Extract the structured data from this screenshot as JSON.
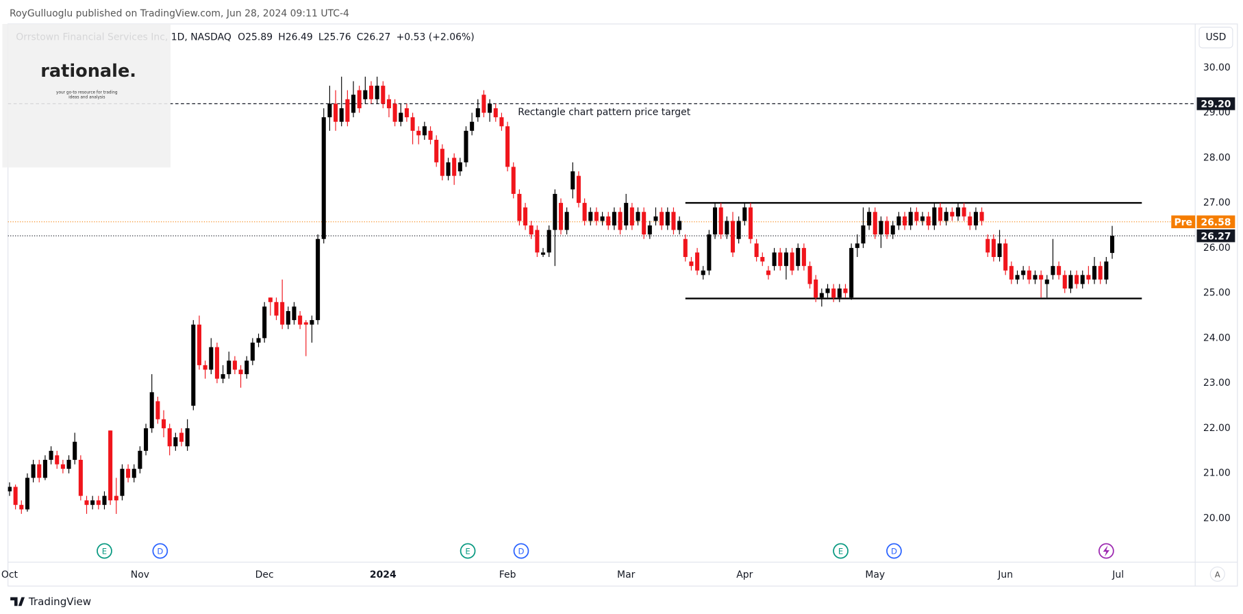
{
  "header": {
    "text": "RoyGulluoglu published on TradingView.com, Jun 28, 2024 09:11 UTC-4"
  },
  "logo": {
    "name": "rationale.",
    "tagline": [
      "your go-to resource for trading",
      "ideas and analysis"
    ]
  },
  "footer": {
    "brand": "TradingView"
  },
  "currency": "USD",
  "auto_button": "A",
  "chart_data": {
    "type": "candlestick",
    "title": "Orrstown Financial Services Inc, 1D, NASDAQ",
    "ohlc_labels": [
      "O",
      "H",
      "L",
      "C"
    ],
    "change": "+0.53 (+2.06%)",
    "up_color": "#000000",
    "down_color": "#f0151c",
    "xlim": [
      -0.27,
      200
    ],
    "xticks": [
      {
        "value": 0,
        "label": "Oct"
      },
      {
        "value": 22,
        "label": "Nov"
      },
      {
        "value": 43,
        "label": "Dec"
      },
      {
        "value": 63,
        "label": "2024"
      },
      {
        "value": 84,
        "label": "Feb"
      },
      {
        "value": 104,
        "label": "Mar"
      },
      {
        "value": 124,
        "label": "Apr"
      },
      {
        "value": 146,
        "label": "May"
      },
      {
        "value": 168,
        "label": "Jun"
      },
      {
        "value": 187,
        "label": "Jul"
      }
    ],
    "ylim": [
      19.03,
      30.97
    ],
    "yticks": [
      {
        "value": 20,
        "label": "20.00"
      },
      {
        "value": 21,
        "label": "21.00"
      },
      {
        "value": 22,
        "label": "22.00"
      },
      {
        "value": 23,
        "label": "23.00"
      },
      {
        "value": 24,
        "label": "24.00"
      },
      {
        "value": 25,
        "label": "25.00"
      },
      {
        "value": 26,
        "label": "26.00"
      },
      {
        "value": 27,
        "label": "27.00"
      },
      {
        "value": 28,
        "label": "28.00"
      },
      {
        "value": 29,
        "label": "29.00"
      },
      {
        "value": 30,
        "label": "30.00"
      }
    ],
    "grid": false,
    "target": {
      "value": 29.2,
      "label": "29.20",
      "annotation": "Rectangle chart pattern price target"
    },
    "premarket": {
      "name": "Pre",
      "value": 26.58,
      "color": "#f57c00"
    },
    "last": 26.27,
    "rectangle": {
      "top": 27.0,
      "bottom": 24.88,
      "x": [
        114,
        191
      ]
    },
    "events": [
      {
        "label": "E",
        "x": 16,
        "color": "#089981"
      },
      {
        "label": "D",
        "x": 25.4,
        "color": "#2962ff"
      },
      {
        "label": "E",
        "x": 77.3,
        "color": "#089981"
      },
      {
        "label": "D",
        "x": 86.3,
        "color": "#2962ff"
      },
      {
        "label": "E",
        "x": 140.2,
        "color": "#089981"
      },
      {
        "label": "D",
        "x": 149.2,
        "color": "#2962ff"
      }
    ],
    "signal": {
      "x": 185,
      "color": "#9c27b0"
    },
    "ohlc": [
      [
        20.6,
        20.8,
        20.5,
        20.7
      ],
      [
        20.7,
        20.75,
        20.2,
        20.3
      ],
      [
        20.3,
        20.4,
        20.1,
        20.2
      ],
      [
        20.2,
        21.0,
        20.15,
        20.9
      ],
      [
        20.9,
        21.3,
        20.8,
        21.2
      ],
      [
        21.2,
        21.3,
        20.8,
        20.9
      ],
      [
        20.9,
        21.4,
        20.85,
        21.3
      ],
      [
        21.3,
        21.6,
        21.2,
        21.5
      ],
      [
        21.4,
        21.5,
        21.1,
        21.2
      ],
      [
        21.2,
        21.3,
        21.0,
        21.1
      ],
      [
        21.1,
        21.4,
        21.0,
        21.3
      ],
      [
        21.3,
        21.9,
        21.2,
        21.7
      ],
      [
        21.3,
        21.4,
        20.4,
        20.5
      ],
      [
        20.4,
        20.5,
        20.1,
        20.3
      ],
      [
        20.3,
        20.5,
        20.2,
        20.4
      ],
      [
        20.4,
        20.5,
        20.2,
        20.3
      ],
      [
        20.3,
        20.6,
        20.2,
        20.5
      ],
      [
        21.95,
        21.95,
        20.3,
        20.4
      ],
      [
        20.5,
        20.9,
        20.1,
        20.4
      ],
      [
        20.5,
        21.2,
        20.4,
        21.1
      ],
      [
        21.1,
        21.2,
        20.8,
        20.9
      ],
      [
        20.9,
        21.2,
        20.8,
        21.1
      ],
      [
        21.1,
        21.6,
        21.0,
        21.5
      ],
      [
        21.5,
        22.1,
        21.4,
        22.0
      ],
      [
        22.0,
        23.2,
        21.9,
        22.8
      ],
      [
        22.6,
        22.7,
        22.1,
        22.2
      ],
      [
        22.2,
        22.4,
        21.8,
        22.0
      ],
      [
        22.0,
        22.1,
        21.4,
        21.6
      ],
      [
        21.6,
        21.9,
        21.5,
        21.8
      ],
      [
        21.9,
        22.0,
        21.6,
        21.7
      ],
      [
        21.6,
        22.2,
        21.5,
        22.0
      ],
      [
        22.5,
        24.4,
        22.4,
        24.3
      ],
      [
        24.3,
        24.5,
        23.3,
        23.4
      ],
      [
        23.4,
        23.5,
        23.1,
        23.3
      ],
      [
        23.3,
        24.0,
        23.2,
        23.8
      ],
      [
        23.8,
        23.9,
        23.0,
        23.1
      ],
      [
        23.1,
        23.4,
        23.0,
        23.2
      ],
      [
        23.2,
        23.7,
        23.1,
        23.5
      ],
      [
        23.5,
        23.6,
        23.2,
        23.3
      ],
      [
        23.3,
        23.4,
        22.9,
        23.2
      ],
      [
        23.2,
        23.6,
        23.1,
        23.5
      ],
      [
        23.5,
        24.0,
        23.4,
        23.9
      ],
      [
        23.9,
        24.1,
        23.8,
        24.0
      ],
      [
        24.0,
        24.8,
        23.9,
        24.7
      ],
      [
        24.9,
        24.9,
        24.5,
        24.8
      ],
      [
        24.8,
        24.9,
        24.4,
        24.5
      ],
      [
        24.8,
        25.3,
        24.2,
        24.3
      ],
      [
        24.3,
        24.7,
        24.2,
        24.6
      ],
      [
        24.4,
        24.8,
        24.3,
        24.7
      ],
      [
        24.5,
        24.6,
        24.2,
        24.3
      ],
      [
        24.35,
        24.4,
        23.6,
        24.3
      ],
      [
        24.3,
        24.5,
        23.9,
        24.4
      ],
      [
        24.4,
        26.3,
        24.3,
        26.2
      ],
      [
        26.2,
        29.1,
        26.1,
        28.9
      ],
      [
        28.9,
        29.6,
        28.6,
        29.2
      ],
      [
        29.2,
        29.5,
        28.6,
        28.8
      ],
      [
        28.8,
        29.8,
        28.7,
        29.1
      ],
      [
        29.3,
        29.5,
        28.7,
        28.8
      ],
      [
        29.0,
        29.7,
        28.9,
        29.4
      ],
      [
        29.5,
        29.6,
        29.0,
        29.1
      ],
      [
        29.3,
        29.8,
        29.2,
        29.5
      ],
      [
        29.6,
        29.7,
        29.2,
        29.3
      ],
      [
        29.3,
        29.8,
        29.2,
        29.6
      ],
      [
        29.6,
        29.7,
        29.1,
        29.2
      ],
      [
        29.3,
        29.4,
        28.9,
        29.1
      ],
      [
        29.2,
        29.3,
        28.7,
        28.8
      ],
      [
        28.8,
        29.2,
        28.7,
        29.0
      ],
      [
        29.1,
        29.2,
        28.8,
        28.9
      ],
      [
        28.9,
        29.0,
        28.3,
        28.6
      ],
      [
        28.6,
        28.7,
        28.3,
        28.5
      ],
      [
        28.5,
        28.8,
        28.4,
        28.7
      ],
      [
        28.6,
        28.7,
        28.3,
        28.4
      ],
      [
        28.4,
        28.5,
        27.8,
        27.9
      ],
      [
        28.2,
        28.3,
        27.5,
        27.6
      ],
      [
        27.6,
        28.0,
        27.5,
        27.9
      ],
      [
        28.0,
        28.1,
        27.4,
        27.6
      ],
      [
        27.7,
        28.0,
        27.6,
        27.9
      ],
      [
        27.9,
        28.7,
        27.8,
        28.6
      ],
      [
        28.6,
        29.0,
        28.5,
        28.8
      ],
      [
        28.9,
        29.3,
        28.8,
        29.1
      ],
      [
        29.4,
        29.5,
        28.9,
        29.0
      ],
      [
        29.0,
        29.3,
        28.8,
        29.2
      ],
      [
        29.1,
        29.2,
        28.8,
        28.9
      ],
      [
        28.9,
        29.0,
        28.6,
        28.7
      ],
      [
        28.7,
        28.8,
        27.7,
        27.8
      ],
      [
        27.8,
        27.9,
        27.1,
        27.2
      ],
      [
        27.2,
        27.3,
        26.5,
        26.6
      ],
      [
        26.9,
        27.0,
        26.4,
        26.5
      ],
      [
        26.5,
        26.6,
        26.2,
        26.3
      ],
      [
        26.4,
        26.5,
        25.8,
        25.9
      ],
      [
        25.85,
        26.0,
        25.8,
        25.9
      ],
      [
        25.9,
        26.5,
        25.8,
        26.4
      ],
      [
        26.4,
        27.3,
        25.6,
        27.2
      ],
      [
        27.0,
        27.1,
        26.3,
        26.4
      ],
      [
        26.4,
        26.9,
        26.3,
        26.8
      ],
      [
        27.3,
        27.9,
        27.1,
        27.7
      ],
      [
        27.6,
        27.7,
        26.9,
        27.0
      ],
      [
        27.0,
        27.1,
        26.5,
        26.6
      ],
      [
        26.6,
        26.9,
        26.5,
        26.8
      ],
      [
        26.8,
        26.9,
        26.5,
        26.6
      ],
      [
        26.6,
        26.8,
        26.5,
        26.7
      ],
      [
        26.7,
        26.8,
        26.4,
        26.5
      ],
      [
        26.5,
        26.9,
        26.4,
        26.8
      ],
      [
        26.8,
        26.9,
        26.3,
        26.4
      ],
      [
        26.5,
        27.2,
        26.4,
        27.0
      ],
      [
        26.9,
        27.0,
        26.4,
        26.5
      ],
      [
        26.6,
        26.9,
        26.5,
        26.8
      ],
      [
        26.8,
        26.9,
        26.2,
        26.3
      ],
      [
        26.3,
        26.6,
        26.2,
        26.5
      ],
      [
        26.6,
        26.9,
        26.5,
        26.7
      ],
      [
        26.8,
        26.9,
        26.4,
        26.5
      ],
      [
        26.5,
        26.9,
        26.4,
        26.8
      ],
      [
        26.8,
        26.9,
        26.3,
        26.4
      ],
      [
        26.4,
        26.7,
        26.3,
        26.6
      ],
      [
        26.2,
        26.3,
        25.7,
        25.8
      ],
      [
        25.7,
        25.8,
        25.5,
        25.6
      ],
      [
        25.9,
        26.0,
        25.4,
        25.5
      ],
      [
        25.4,
        25.6,
        25.3,
        25.5
      ],
      [
        25.5,
        26.4,
        25.4,
        26.3
      ],
      [
        26.3,
        27.0,
        26.2,
        26.9
      ],
      [
        26.9,
        27.0,
        26.2,
        26.3
      ],
      [
        26.3,
        26.7,
        26.2,
        26.6
      ],
      [
        26.6,
        26.8,
        25.8,
        25.9
      ],
      [
        26.2,
        26.7,
        26.1,
        26.6
      ],
      [
        26.6,
        27.0,
        26.5,
        26.9
      ],
      [
        26.9,
        27.0,
        26.1,
        26.2
      ],
      [
        26.1,
        26.2,
        25.7,
        25.8
      ],
      [
        25.8,
        25.9,
        25.6,
        25.7
      ],
      [
        25.5,
        25.6,
        25.3,
        25.4
      ],
      [
        25.6,
        26.0,
        25.5,
        25.9
      ],
      [
        25.9,
        26.0,
        25.5,
        25.6
      ],
      [
        25.6,
        26.0,
        25.3,
        25.9
      ],
      [
        25.9,
        26.0,
        25.4,
        25.5
      ],
      [
        25.6,
        26.1,
        25.5,
        26.0
      ],
      [
        26.0,
        26.1,
        25.5,
        25.6
      ],
      [
        25.6,
        25.7,
        25.1,
        25.2
      ],
      [
        25.3,
        25.4,
        24.8,
        24.9
      ],
      [
        24.9,
        25.1,
        24.7,
        25.0
      ],
      [
        25.0,
        25.2,
        24.9,
        25.1
      ],
      [
        25.1,
        25.2,
        24.8,
        24.9
      ],
      [
        24.9,
        25.2,
        24.8,
        25.1
      ],
      [
        25.1,
        25.2,
        24.9,
        25.0
      ],
      [
        24.9,
        26.1,
        24.85,
        26.0
      ],
      [
        26.0,
        26.3,
        25.8,
        26.1
      ],
      [
        26.1,
        26.9,
        26.0,
        26.5
      ],
      [
        26.5,
        26.9,
        26.4,
        26.8
      ],
      [
        26.8,
        26.9,
        26.2,
        26.3
      ],
      [
        26.3,
        26.7,
        26.0,
        26.6
      ],
      [
        26.6,
        26.7,
        26.2,
        26.3
      ],
      [
        26.3,
        26.6,
        26.2,
        26.5
      ],
      [
        26.5,
        26.8,
        26.4,
        26.7
      ],
      [
        26.7,
        26.8,
        26.4,
        26.5
      ],
      [
        26.5,
        26.9,
        26.4,
        26.8
      ],
      [
        26.8,
        26.9,
        26.5,
        26.6
      ],
      [
        26.6,
        26.8,
        26.5,
        26.7
      ],
      [
        26.7,
        26.8,
        26.4,
        26.5
      ],
      [
        26.5,
        27.0,
        26.4,
        26.9
      ],
      [
        26.9,
        27.0,
        26.5,
        26.6
      ],
      [
        26.6,
        26.9,
        26.5,
        26.8
      ],
      [
        26.8,
        26.9,
        26.6,
        26.7
      ],
      [
        26.7,
        27.0,
        26.6,
        26.9
      ],
      [
        26.9,
        27.0,
        26.6,
        26.7
      ],
      [
        26.7,
        26.8,
        26.4,
        26.5
      ],
      [
        26.5,
        26.9,
        26.4,
        26.8
      ],
      [
        26.8,
        26.9,
        26.5,
        26.6
      ],
      [
        26.2,
        26.3,
        25.8,
        25.9
      ],
      [
        26.2,
        26.3,
        25.7,
        25.8
      ],
      [
        25.8,
        26.4,
        25.7,
        26.1
      ],
      [
        26.1,
        26.2,
        25.4,
        25.5
      ],
      [
        25.6,
        25.7,
        25.2,
        25.3
      ],
      [
        25.3,
        25.5,
        25.2,
        25.4
      ],
      [
        25.4,
        25.6,
        25.3,
        25.5
      ],
      [
        25.5,
        25.6,
        25.2,
        25.3
      ],
      [
        25.3,
        25.5,
        25.2,
        25.4
      ],
      [
        25.4,
        25.5,
        24.9,
        25.3
      ],
      [
        25.2,
        25.4,
        24.9,
        25.3
      ],
      [
        25.4,
        26.2,
        25.3,
        25.6
      ],
      [
        25.6,
        25.7,
        25.3,
        25.4
      ],
      [
        25.4,
        25.5,
        25.0,
        25.1
      ],
      [
        25.1,
        25.5,
        25.0,
        25.4
      ],
      [
        25.4,
        25.5,
        25.1,
        25.2
      ],
      [
        25.2,
        25.5,
        25.1,
        25.4
      ],
      [
        25.4,
        25.6,
        25.2,
        25.3
      ],
      [
        25.3,
        25.8,
        25.2,
        25.6
      ],
      [
        25.6,
        25.7,
        25.2,
        25.3
      ],
      [
        25.3,
        25.8,
        25.2,
        25.7
      ],
      [
        25.89,
        26.49,
        25.76,
        26.27
      ]
    ]
  }
}
